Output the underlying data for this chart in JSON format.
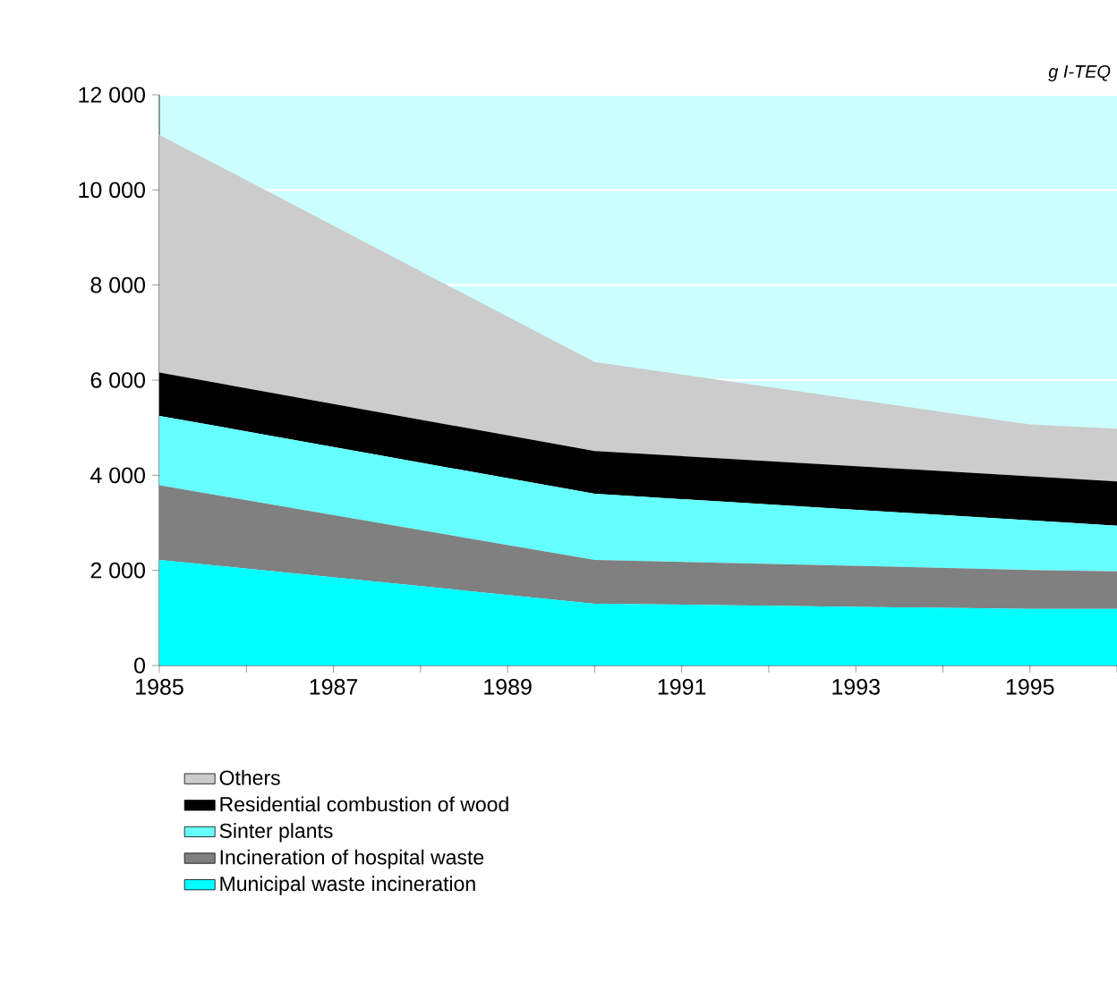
{
  "chart_data": {
    "type": "area",
    "stacked": true,
    "ylabel": "g I-TEQ",
    "x": [
      1985,
      1990,
      1995,
      1996
    ],
    "series": [
      {
        "name": "Municipal waste incineration",
        "color": "#00ffff",
        "values": [
          2220,
          1300,
          1190,
          1190
        ]
      },
      {
        "name": "Incineration of hospital waste",
        "color": "#808080",
        "values": [
          1570,
          920,
          820,
          790
        ]
      },
      {
        "name": "Sinter plants",
        "color": "#66ffff",
        "values": [
          1460,
          1390,
          1040,
          960
        ]
      },
      {
        "name": "Residential combustion of wood",
        "color": "#000000",
        "values": [
          910,
          900,
          930,
          930
        ]
      },
      {
        "name": "Others",
        "color": "#cccccc",
        "values": [
          5000,
          1870,
          1090,
          1110
        ]
      }
    ],
    "xlim": [
      1985,
      1996
    ],
    "xticks": [
      1985,
      {
        "value": 1986,
        "label": null
      },
      1987,
      {
        "value": 1988,
        "label": null
      },
      1989,
      {
        "value": 1990,
        "label": null
      },
      1991,
      {
        "value": 1992,
        "label": null
      },
      1993,
      {
        "value": 1994,
        "label": null
      },
      1995,
      {
        "value": 1996,
        "label": null
      }
    ],
    "ylim": [
      0,
      12000
    ],
    "yticks": [
      0,
      {
        "value": 2000,
        "label": "2 000"
      },
      {
        "value": 4000,
        "label": "4 000"
      },
      {
        "value": 6000,
        "label": "6 000"
      },
      {
        "value": 8000,
        "label": "8 000"
      },
      {
        "value": 10000,
        "label": "10 000"
      },
      {
        "value": 12000,
        "label": "12 000"
      }
    ],
    "grid": "y",
    "legend": "bottom"
  }
}
